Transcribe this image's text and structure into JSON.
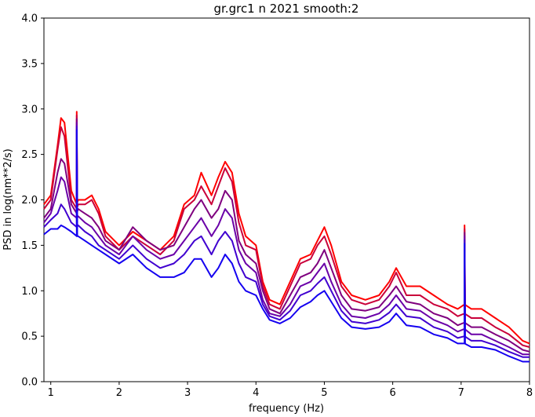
{
  "chart_data": {
    "type": "line",
    "title": "gr.grc1 n 2021 smooth:2",
    "xlabel": "frequency (Hz)",
    "ylabel": "PSD in log(nm**2/s)",
    "xlim": [
      0.9,
      8.0
    ],
    "ylim": [
      0.0,
      4.0
    ],
    "x_ticks": [
      1,
      2,
      3,
      4,
      5,
      6,
      7,
      8
    ],
    "x_tick_labels": [
      "1",
      "2",
      "3",
      "4",
      "5",
      "6",
      "7",
      "8"
    ],
    "y_ticks": [
      0.0,
      0.5,
      1.0,
      1.5,
      2.0,
      2.5,
      3.0,
      3.5,
      4.0
    ],
    "y_tick_labels": [
      "0.0",
      "0.5",
      "1.0",
      "1.5",
      "2.0",
      "2.5",
      "3.0",
      "3.5",
      "4.0"
    ],
    "grid": false,
    "legend": "none",
    "x": [
      0.9,
      1.0,
      1.1,
      1.15,
      1.2,
      1.3,
      1.38,
      1.4,
      1.5,
      1.6,
      1.7,
      1.8,
      2.0,
      2.2,
      2.4,
      2.6,
      2.8,
      2.95,
      3.1,
      3.2,
      3.35,
      3.45,
      3.55,
      3.65,
      3.75,
      3.85,
      4.0,
      4.1,
      4.2,
      4.35,
      4.5,
      4.65,
      4.8,
      4.9,
      5.0,
      5.1,
      5.25,
      5.4,
      5.6,
      5.8,
      5.95,
      6.05,
      6.2,
      6.4,
      6.6,
      6.8,
      6.95,
      7.05,
      7.15,
      7.3,
      7.5,
      7.7,
      7.9,
      8.0
    ],
    "series": [
      {
        "color": "#ff0000",
        "values": [
          1.95,
          2.05,
          2.6,
          2.9,
          2.85,
          2.1,
          1.95,
          2.0,
          2.0,
          2.05,
          1.9,
          1.65,
          1.5,
          1.65,
          1.55,
          1.45,
          1.6,
          1.95,
          2.05,
          2.3,
          2.05,
          2.25,
          2.42,
          2.3,
          1.85,
          1.6,
          1.5,
          1.1,
          0.9,
          0.85,
          1.1,
          1.35,
          1.4,
          1.55,
          1.7,
          1.5,
          1.1,
          0.95,
          0.9,
          0.95,
          1.1,
          1.25,
          1.05,
          1.05,
          0.95,
          0.85,
          0.8,
          0.85,
          0.8,
          0.8,
          0.7,
          0.6,
          0.45,
          0.42
        ]
      },
      {
        "color": "#c9003a",
        "values": [
          1.9,
          2.0,
          2.55,
          2.8,
          2.7,
          2.0,
          1.9,
          1.95,
          1.95,
          2.0,
          1.85,
          1.6,
          1.45,
          1.6,
          1.5,
          1.4,
          1.55,
          1.9,
          2.0,
          2.15,
          1.95,
          2.15,
          2.35,
          2.2,
          1.75,
          1.5,
          1.45,
          1.05,
          0.85,
          0.8,
          1.05,
          1.3,
          1.35,
          1.5,
          1.6,
          1.4,
          1.05,
          0.9,
          0.85,
          0.9,
          1.05,
          1.2,
          0.95,
          0.95,
          0.85,
          0.8,
          0.72,
          0.75,
          0.7,
          0.7,
          0.6,
          0.52,
          0.4,
          0.38
        ]
      },
      {
        "color": "#7f007f",
        "values": [
          1.8,
          1.9,
          2.3,
          2.45,
          2.4,
          1.95,
          1.85,
          1.9,
          1.85,
          1.8,
          1.7,
          1.55,
          1.45,
          1.7,
          1.55,
          1.45,
          1.5,
          1.7,
          1.9,
          2.0,
          1.8,
          1.9,
          2.1,
          2.0,
          1.55,
          1.4,
          1.3,
          1.0,
          0.8,
          0.75,
          0.95,
          1.15,
          1.2,
          1.3,
          1.45,
          1.25,
          0.95,
          0.8,
          0.78,
          0.82,
          0.95,
          1.05,
          0.88,
          0.85,
          0.75,
          0.7,
          0.62,
          0.65,
          0.6,
          0.6,
          0.52,
          0.45,
          0.35,
          0.33
        ]
      },
      {
        "color": "#6a00a8",
        "values": [
          1.75,
          1.85,
          2.1,
          2.25,
          2.2,
          1.85,
          1.8,
          1.82,
          1.75,
          1.7,
          1.6,
          1.5,
          1.4,
          1.6,
          1.45,
          1.35,
          1.4,
          1.55,
          1.7,
          1.8,
          1.6,
          1.72,
          1.9,
          1.8,
          1.45,
          1.3,
          1.2,
          0.9,
          0.75,
          0.72,
          0.85,
          1.05,
          1.1,
          1.2,
          1.3,
          1.1,
          0.85,
          0.72,
          0.7,
          0.75,
          0.85,
          0.95,
          0.8,
          0.78,
          0.68,
          0.62,
          0.55,
          0.58,
          0.52,
          0.52,
          0.45,
          0.38,
          0.3,
          0.3
        ]
      },
      {
        "color": "#4000d0",
        "values": [
          1.7,
          1.78,
          1.85,
          1.95,
          1.9,
          1.75,
          1.7,
          1.72,
          1.65,
          1.6,
          1.5,
          1.45,
          1.35,
          1.5,
          1.35,
          1.25,
          1.3,
          1.4,
          1.55,
          1.6,
          1.4,
          1.55,
          1.65,
          1.55,
          1.3,
          1.15,
          1.1,
          0.85,
          0.72,
          0.68,
          0.78,
          0.95,
          1.0,
          1.08,
          1.15,
          1.0,
          0.78,
          0.66,
          0.64,
          0.68,
          0.76,
          0.85,
          0.72,
          0.7,
          0.6,
          0.55,
          0.48,
          0.5,
          0.45,
          0.45,
          0.4,
          0.33,
          0.27,
          0.27
        ]
      },
      {
        "color": "#1400f0",
        "values": [
          1.62,
          1.68,
          1.68,
          1.72,
          1.7,
          1.65,
          1.6,
          1.6,
          1.55,
          1.5,
          1.45,
          1.4,
          1.3,
          1.4,
          1.25,
          1.15,
          1.15,
          1.2,
          1.35,
          1.35,
          1.15,
          1.25,
          1.4,
          1.3,
          1.1,
          1.0,
          0.95,
          0.8,
          0.68,
          0.64,
          0.7,
          0.82,
          0.88,
          0.95,
          1.0,
          0.88,
          0.7,
          0.6,
          0.58,
          0.6,
          0.66,
          0.75,
          0.62,
          0.6,
          0.52,
          0.48,
          0.42,
          0.42,
          0.38,
          0.38,
          0.35,
          0.28,
          0.22,
          0.22
        ]
      }
    ],
    "spikes": [
      {
        "x": 1.38,
        "y": 2.97
      },
      {
        "x": 7.05,
        "y": 1.72
      }
    ]
  }
}
